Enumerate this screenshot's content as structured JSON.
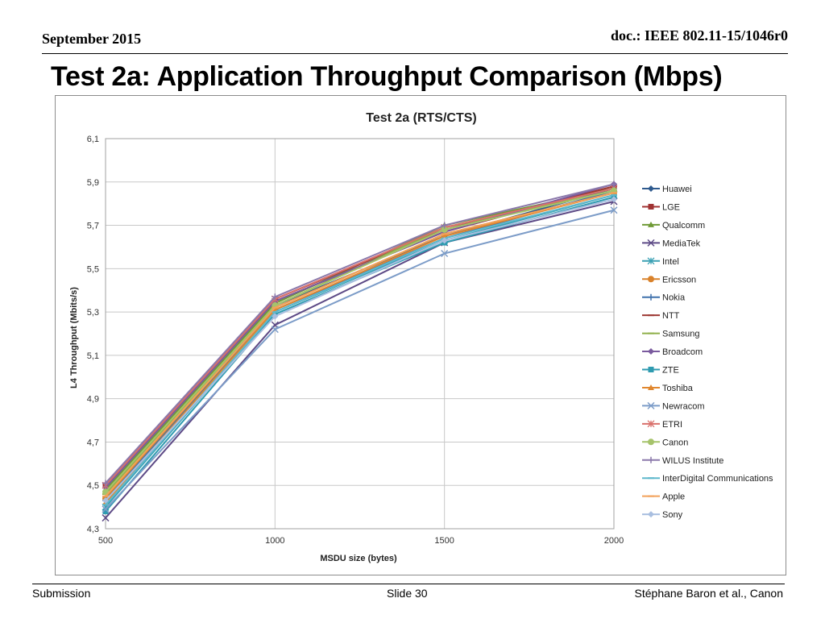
{
  "header": {
    "date": "September 2015",
    "doc": "doc.: IEEE 802.11-15/1046r0"
  },
  "slide": {
    "title": "Test 2a: Application Throughput Comparison (Mbps)"
  },
  "footer": {
    "left": "Submission",
    "center": "Slide 30",
    "right": "Stéphane Baron et al., Canon"
  },
  "chart_data": {
    "type": "line",
    "title": "Test 2a (RTS/CTS)",
    "xlabel": "MSDU size (bytes)",
    "ylabel": "L4 Throughput (Mbits/s)",
    "categories": [
      "500",
      "1000",
      "1500",
      "2000"
    ],
    "ylim": [
      4.3,
      6.1
    ],
    "yticks": [
      "4,3",
      "4,5",
      "4,7",
      "4,9",
      "5,1",
      "5,3",
      "5,5",
      "5,7",
      "5,9",
      "6,1"
    ],
    "grid": "vertical and horizontal",
    "legend_position": "right",
    "series": [
      {
        "name": "Huawei",
        "color": "#2e5a8e",
        "marker": "diamond",
        "values": [
          4.47,
          5.33,
          5.65,
          5.87
        ]
      },
      {
        "name": "LGE",
        "color": "#a03232",
        "marker": "square",
        "values": [
          4.5,
          5.35,
          5.67,
          5.88
        ]
      },
      {
        "name": "Qualcomm",
        "color": "#6f9a36",
        "marker": "triangle",
        "values": [
          4.48,
          5.34,
          5.7,
          5.87
        ]
      },
      {
        "name": "MediaTek",
        "color": "#5d4a86",
        "marker": "x",
        "values": [
          4.35,
          5.24,
          5.62,
          5.81
        ]
      },
      {
        "name": "Intel",
        "color": "#3aa0b4",
        "marker": "asterisk",
        "values": [
          4.4,
          5.3,
          5.63,
          5.84
        ]
      },
      {
        "name": "Ericsson",
        "color": "#d9822b",
        "marker": "circle",
        "values": [
          4.44,
          5.32,
          5.66,
          5.85
        ]
      },
      {
        "name": "Nokia",
        "color": "#3f70ac",
        "marker": "plus",
        "values": [
          4.43,
          5.31,
          5.64,
          5.86
        ]
      },
      {
        "name": "NTT",
        "color": "#9e3a35",
        "marker": "dash",
        "values": [
          4.51,
          5.36,
          5.68,
          5.88
        ]
      },
      {
        "name": "Samsung",
        "color": "#8fb04a",
        "marker": "dash",
        "values": [
          4.46,
          5.33,
          5.69,
          5.86
        ]
      },
      {
        "name": "Broadcom",
        "color": "#7a5a9e",
        "marker": "diamond",
        "values": [
          4.49,
          5.35,
          5.67,
          5.89
        ]
      },
      {
        "name": "ZTE",
        "color": "#2f9bb0",
        "marker": "square",
        "values": [
          4.38,
          5.29,
          5.62,
          5.83
        ]
      },
      {
        "name": "Toshiba",
        "color": "#e0872e",
        "marker": "triangle",
        "values": [
          4.42,
          5.31,
          5.65,
          5.85
        ]
      },
      {
        "name": "Newracom",
        "color": "#7c9cc8",
        "marker": "x",
        "values": [
          4.39,
          5.22,
          5.57,
          5.77
        ]
      },
      {
        "name": "ETRI",
        "color": "#d9716c",
        "marker": "asterisk",
        "values": [
          4.5,
          5.36,
          5.69,
          5.87
        ]
      },
      {
        "name": "Canon",
        "color": "#a6c36b",
        "marker": "circle",
        "values": [
          4.47,
          5.33,
          5.68,
          5.86
        ]
      },
      {
        "name": "WILUS Institute",
        "color": "#8b79ab",
        "marker": "plus",
        "values": [
          4.51,
          5.37,
          5.7,
          5.89
        ]
      },
      {
        "name": "InterDigital Communications",
        "color": "#5fb8cc",
        "marker": "dash",
        "values": [
          4.41,
          5.3,
          5.64,
          5.84
        ]
      },
      {
        "name": "Apple",
        "color": "#f2a15a",
        "marker": "dash",
        "values": [
          4.45,
          5.32,
          5.66,
          5.85
        ]
      },
      {
        "name": "Sony",
        "color": "#a9bfe0",
        "marker": "diamond",
        "values": [
          4.43,
          5.28,
          5.63,
          5.82
        ]
      }
    ]
  }
}
